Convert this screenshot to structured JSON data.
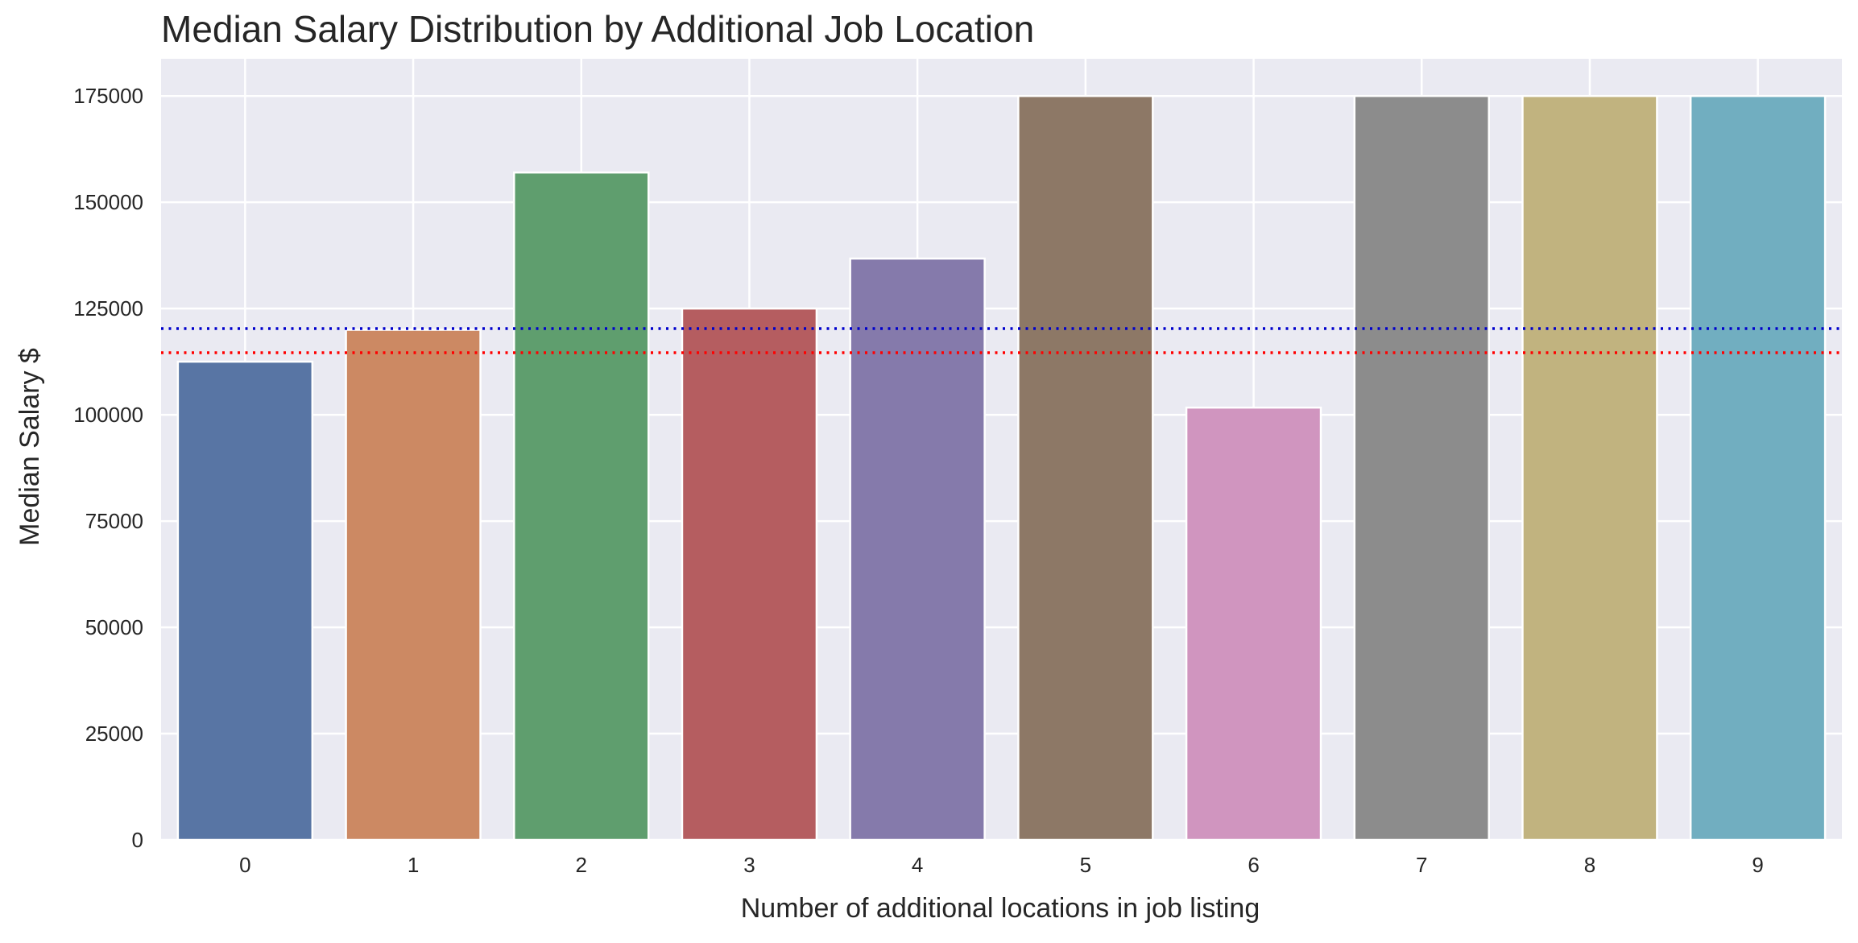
{
  "chart_data": {
    "type": "bar",
    "title": "Median Salary Distribution by Additional Job Location",
    "xlabel": "Number of additional locations in job listing",
    "ylabel": "Median Salary $",
    "categories": [
      "0",
      "1",
      "2",
      "3",
      "4",
      "5",
      "6",
      "7",
      "8",
      "9"
    ],
    "values": [
      112500,
      120000,
      157000,
      125000,
      136750,
      175000,
      101700,
      175000,
      175000,
      175000
    ],
    "colors": [
      "#5875a4",
      "#cc8963",
      "#5f9e6e",
      "#b55d60",
      "#857aab",
      "#8d7866",
      "#d095bf",
      "#8c8c8c",
      "#c1b37f",
      "#71aec0"
    ],
    "ylim": [
      0,
      183750
    ],
    "yticks": [
      0,
      25000,
      50000,
      75000,
      100000,
      125000,
      150000,
      175000
    ],
    "ytick_labels": [
      "0",
      "25000",
      "50000",
      "75000",
      "100000",
      "125000",
      "150000",
      "175000"
    ],
    "reference_lines": [
      {
        "value": 120300,
        "color": "#0000cc",
        "style": "dotted"
      },
      {
        "value": 114600,
        "color": "#ff0000",
        "style": "dotted"
      }
    ],
    "grid": true,
    "background": "#eaeaf2"
  }
}
